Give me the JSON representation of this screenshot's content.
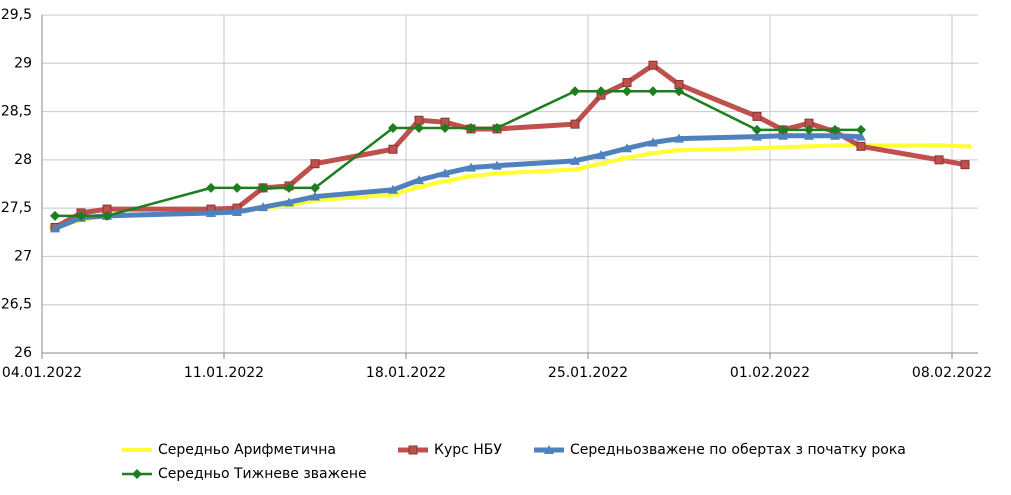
{
  "chart_data": {
    "type": "line",
    "x": [
      "04.01.2022",
      "05.01.2022",
      "06.01.2022",
      "10.01.2022",
      "11.01.2022",
      "12.01.2022",
      "13.01.2022",
      "14.01.2022",
      "17.01.2022",
      "18.01.2022",
      "19.01.2022",
      "20.01.2022",
      "21.01.2022",
      "24.01.2022",
      "25.01.2022",
      "26.01.2022",
      "27.01.2022",
      "28.01.2022",
      "31.01.2022",
      "01.02.2022",
      "02.02.2022",
      "03.02.2022",
      "04.02.2022",
      "07.02.2022",
      "08.02.2022"
    ],
    "xlim": [
      "04.01.2022",
      "08.02.2022"
    ],
    "xticks": [
      "04.01.2022",
      "11.01.2022",
      "18.01.2022",
      "25.01.2022",
      "01.02.2022",
      "08.02.2022"
    ],
    "ylim": [
      26,
      29.5
    ],
    "yticks": [
      26,
      {
        "value": 26.5,
        "label": "26,5"
      },
      27,
      {
        "value": 27.5,
        "label": "27,5"
      },
      28,
      {
        "value": 28.5,
        "label": "28,5"
      },
      29,
      {
        "value": 29.5,
        "label": "29,5"
      }
    ],
    "grid": true,
    "legend": "bottom",
    "series": [
      {
        "name": "Середньо Арифметична",
        "color": "#ffff33",
        "marker": "dash",
        "values": [
          27.3,
          27.38,
          27.42,
          27.45,
          27.47,
          27.5,
          27.53,
          27.58,
          27.64,
          27.72,
          27.78,
          27.83,
          27.86,
          27.9,
          27.96,
          28.02,
          28.07,
          28.1,
          28.12,
          28.13,
          28.14,
          28.15,
          28.15,
          28.15,
          28.14
        ]
      },
      {
        "name": "Курс НБУ",
        "color": "#c0504d",
        "marker": "square",
        "values": [
          27.3,
          27.45,
          27.49,
          27.49,
          27.5,
          27.71,
          27.73,
          27.96,
          28.11,
          28.41,
          28.39,
          28.32,
          28.32,
          28.37,
          28.67,
          28.8,
          28.98,
          28.78,
          28.45,
          28.31,
          28.38,
          28.29,
          28.14,
          28.0,
          27.95
        ]
      },
      {
        "name": "Середньозважене по обертах з початку рока",
        "color": "#4f81bd",
        "marker": "triangle",
        "values": [
          27.29,
          27.4,
          27.42,
          27.45,
          27.46,
          27.51,
          27.56,
          27.62,
          27.69,
          27.79,
          27.86,
          27.92,
          27.94,
          27.99,
          28.05,
          28.12,
          28.18,
          28.22,
          28.24,
          28.25,
          28.25,
          28.25,
          28.24,
          null,
          null
        ]
      },
      {
        "name": "Середньо Тижневе зважене",
        "color": "#1e7d1e",
        "marker": "diamond",
        "values": [
          27.42,
          27.42,
          27.42,
          27.71,
          27.71,
          27.71,
          27.71,
          27.71,
          28.33,
          28.33,
          28.33,
          28.33,
          28.33,
          28.71,
          28.71,
          28.71,
          28.71,
          28.71,
          28.31,
          28.31,
          28.31,
          28.31,
          28.31,
          null,
          null
        ]
      }
    ]
  }
}
